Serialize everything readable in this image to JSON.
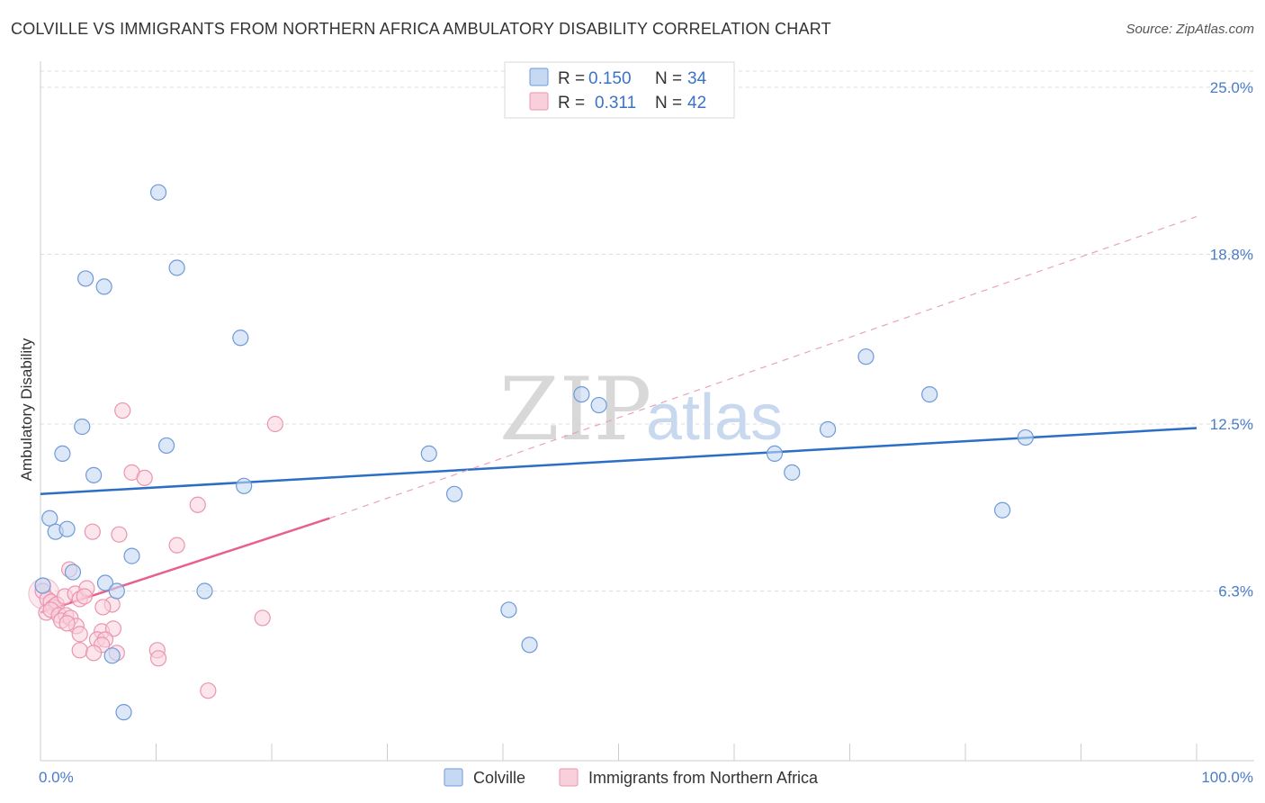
{
  "title": "COLVILLE VS IMMIGRANTS FROM NORTHERN AFRICA AMBULATORY DISABILITY CORRELATION CHART",
  "source": "Source: ZipAtlas.com",
  "watermark": {
    "zip": "ZIP",
    "atlas": "atlas"
  },
  "colors": {
    "blue_fill": "#c5d9f3",
    "blue_stroke": "#6f9ad8",
    "blue_line": "#2a6ec6",
    "pink_fill": "#f9cfdb",
    "pink_stroke": "#ea95b0",
    "pink_line": "#e8608c",
    "grid": "#dddddd",
    "tick_text": "#4a7cc9"
  },
  "legend": {
    "series": [
      {
        "r_label": "R = ",
        "r_value": "0.150",
        "n_label": "N = ",
        "n_value": "34"
      },
      {
        "r_label": "R = ",
        "r_value": "0.311",
        "n_label": "N = ",
        "n_value": "42"
      }
    ]
  },
  "chart_data": {
    "type": "scatter",
    "title": "COLVILLE VS IMMIGRANTS FROM NORTHERN AFRICA AMBULATORY DISABILITY CORRELATION CHART",
    "xlabel": "",
    "ylabel": "Ambulatory Disability",
    "xlim": [
      0,
      100
    ],
    "ylim": [
      0,
      25.0
    ],
    "x_tick_labels": [
      "0.0%",
      "100.0%"
    ],
    "y_ticks": [
      6.3,
      12.5,
      18.8,
      25.0
    ],
    "y_tick_labels": [
      "6.3%",
      "12.5%",
      "18.8%",
      "25.0%"
    ],
    "grid": true,
    "legend_position": "top-center",
    "series": [
      {
        "name": "Colville",
        "R": 0.15,
        "N": 34,
        "trend": {
          "x0": 0,
          "y0": 9.9,
          "x1": 100,
          "y1": 12.35,
          "style": "solid"
        },
        "points": [
          [
            10.2,
            21.1
          ],
          [
            11.8,
            18.3
          ],
          [
            3.9,
            17.9
          ],
          [
            5.5,
            17.6
          ],
          [
            17.3,
            15.7
          ],
          [
            71.4,
            15.0
          ],
          [
            46.8,
            13.6
          ],
          [
            76.9,
            13.6
          ],
          [
            48.3,
            13.2
          ],
          [
            3.6,
            12.4
          ],
          [
            68.1,
            12.3
          ],
          [
            85.2,
            12.0
          ],
          [
            10.9,
            11.7
          ],
          [
            1.9,
            11.4
          ],
          [
            33.6,
            11.4
          ],
          [
            63.5,
            11.4
          ],
          [
            4.6,
            10.6
          ],
          [
            65.0,
            10.7
          ],
          [
            17.6,
            10.2
          ],
          [
            35.8,
            9.9
          ],
          [
            0.8,
            9.0
          ],
          [
            83.2,
            9.3
          ],
          [
            1.3,
            8.5
          ],
          [
            2.3,
            8.6
          ],
          [
            7.9,
            7.6
          ],
          [
            2.8,
            7.0
          ],
          [
            5.6,
            6.6
          ],
          [
            6.6,
            6.3
          ],
          [
            14.2,
            6.3
          ],
          [
            0.2,
            6.5
          ],
          [
            40.5,
            5.6
          ],
          [
            42.3,
            4.3
          ],
          [
            6.2,
            3.9
          ],
          [
            7.2,
            1.8
          ]
        ]
      },
      {
        "name": "Immigrants from Northern Africa",
        "R": 0.311,
        "N": 42,
        "trend": {
          "x0": 0,
          "y0": 5.5,
          "x1": 25,
          "y1": 9.0,
          "style": "solid"
        },
        "trend_extension": {
          "x0": 25,
          "y0": 9.0,
          "x1": 100,
          "y1": 20.2,
          "style": "dashed"
        },
        "points": [
          [
            20.3,
            12.5
          ],
          [
            7.1,
            13.0
          ],
          [
            7.9,
            10.7
          ],
          [
            9.0,
            10.5
          ],
          [
            13.6,
            9.5
          ],
          [
            4.5,
            8.5
          ],
          [
            6.8,
            8.4
          ],
          [
            11.8,
            8.0
          ],
          [
            2.5,
            7.1
          ],
          [
            6.2,
            5.8
          ],
          [
            0.2,
            6.3
          ],
          [
            0.6,
            6.0
          ],
          [
            0.9,
            5.9
          ],
          [
            1.1,
            5.7
          ],
          [
            1.4,
            5.8
          ],
          [
            2.1,
            6.1
          ],
          [
            3.0,
            6.2
          ],
          [
            3.4,
            6.0
          ],
          [
            4.0,
            6.4
          ],
          [
            3.8,
            6.1
          ],
          [
            0.5,
            5.5
          ],
          [
            0.9,
            5.6
          ],
          [
            1.6,
            5.4
          ],
          [
            2.2,
            5.4
          ],
          [
            1.8,
            5.2
          ],
          [
            2.6,
            5.3
          ],
          [
            3.1,
            5.0
          ],
          [
            5.4,
            5.7
          ],
          [
            19.2,
            5.3
          ],
          [
            2.3,
            5.1
          ],
          [
            5.3,
            4.8
          ],
          [
            6.3,
            4.9
          ],
          [
            3.4,
            4.7
          ],
          [
            4.9,
            4.5
          ],
          [
            5.6,
            4.5
          ],
          [
            5.3,
            4.3
          ],
          [
            3.4,
            4.1
          ],
          [
            4.6,
            4.0
          ],
          [
            6.6,
            4.0
          ],
          [
            10.1,
            4.1
          ],
          [
            10.2,
            3.8
          ],
          [
            14.5,
            2.6
          ]
        ]
      }
    ]
  },
  "bottom_legend": [
    {
      "label": "Colville"
    },
    {
      "label": "Immigrants from Northern Africa"
    }
  ]
}
